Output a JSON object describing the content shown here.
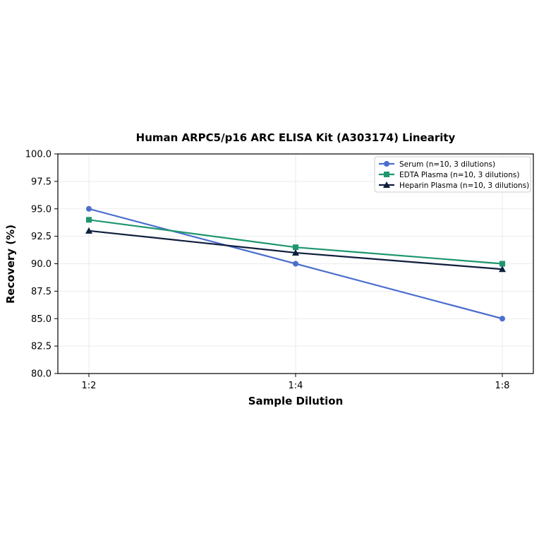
{
  "chart_data": {
    "type": "line",
    "title": "Human ARPC5/p16 ARC ELISA Kit (A303174) Linearity",
    "xlabel": "Sample Dilution",
    "ylabel": "Recovery (%)",
    "categories": [
      "1:2",
      "1:4",
      "1:8"
    ],
    "ylim": [
      80.0,
      100.0
    ],
    "yticks": [
      "80.0",
      "82.5",
      "85.0",
      "87.5",
      "90.0",
      "92.5",
      "95.0",
      "97.5",
      "100.0"
    ],
    "grid": true,
    "legend_position": "top-right",
    "series": [
      {
        "name": "Serum (n=10, 3 dilutions)",
        "values": [
          95.0,
          90.0,
          85.0
        ],
        "color": "#4C6ECD",
        "marker": "circle"
      },
      {
        "name": "EDTA Plasma (n=10, 3 dilutions)",
        "values": [
          94.0,
          91.5,
          90.0
        ],
        "color": "#1E9670",
        "marker": "square"
      },
      {
        "name": "Heparin Plasma (n=10, 3 dilutions)",
        "values": [
          93.0,
          91.0,
          89.5
        ],
        "color": "#0F1E3C",
        "marker": "triangle"
      }
    ]
  }
}
